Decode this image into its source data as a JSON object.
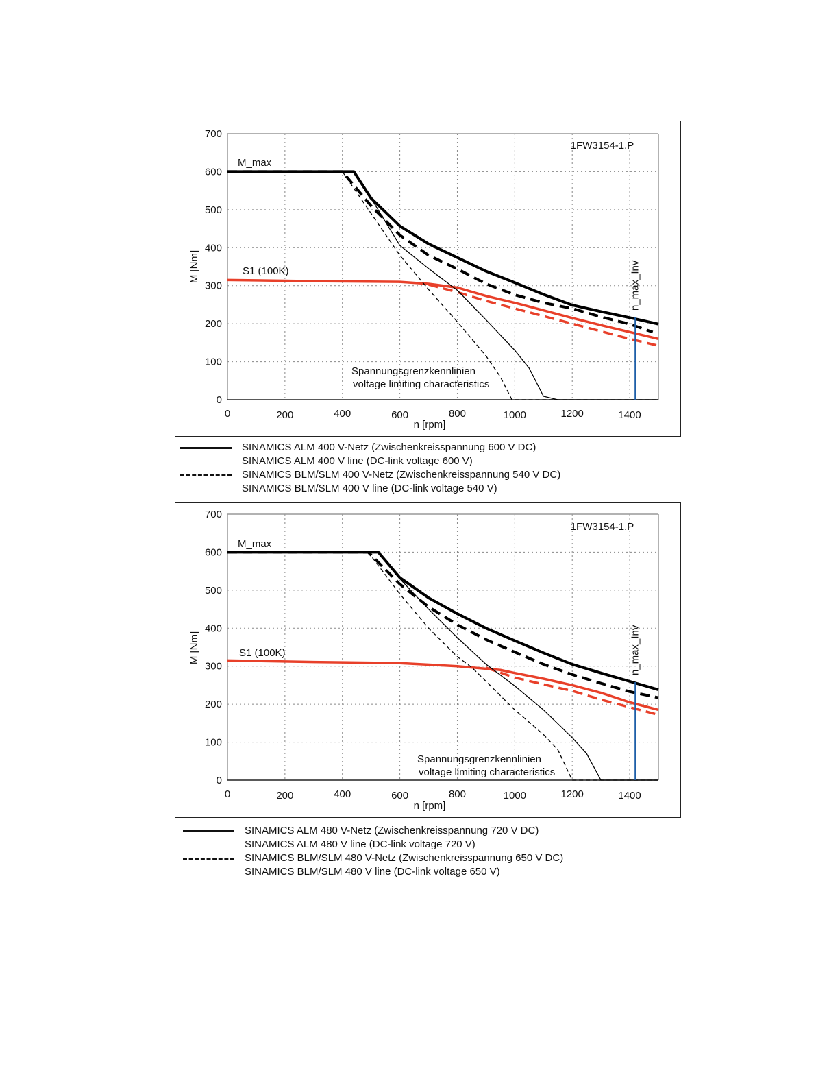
{
  "chart_data": [
    {
      "type": "line",
      "title": "1FW3154-1.P",
      "xlabel": "n [rpm]",
      "ylabel": "M [Nm]",
      "xlim": [
        0,
        1500
      ],
      "ylim": [
        0,
        700
      ],
      "xticks": [
        0,
        200,
        400,
        600,
        800,
        1000,
        1200,
        1400
      ],
      "yticks": [
        0,
        100,
        200,
        300,
        400,
        500,
        600,
        700
      ],
      "grid": true,
      "labels": {
        "mmax": "M_max",
        "s1": "S1 (100K)",
        "annotation_de": "Spannungsgrenzkennlinien",
        "annotation_en": "voltage limiting characteristics",
        "n_max": "n_max_Inv"
      },
      "n_max_inv": 1420,
      "series": [
        {
          "name": "M_max ALM 600 V DC",
          "style": "thick-solid",
          "color": "#000000",
          "x": [
            0,
            440,
            500,
            600,
            700,
            800,
            900,
            1000,
            1100,
            1200,
            1300,
            1400,
            1500
          ],
          "y": [
            600,
            600,
            530,
            457,
            410,
            374,
            338,
            308,
            277,
            249,
            232,
            216,
            199
          ]
        },
        {
          "name": "M_max BLM/SLM 540 V DC",
          "style": "thick-dashed",
          "color": "#000000",
          "x": [
            0,
            400,
            500,
            600,
            700,
            800,
            900,
            1000,
            1100,
            1200,
            1300,
            1400,
            1480
          ],
          "y": [
            600,
            600,
            510,
            433,
            380,
            344,
            305,
            276,
            255,
            240,
            218,
            199,
            178
          ]
        },
        {
          "name": "S1 ALM",
          "style": "solid",
          "color": "#e8402a",
          "x": [
            0,
            300,
            600,
            700,
            800,
            900,
            1000,
            1100,
            1200,
            1300,
            1400,
            1500
          ],
          "y": [
            315,
            312,
            310,
            305,
            295,
            273,
            255,
            235,
            215,
            196,
            178,
            160
          ]
        },
        {
          "name": "S1 BLM/SLM",
          "style": "dashed",
          "color": "#e8402a",
          "x": [
            700,
            800,
            900,
            1000,
            1100,
            1200,
            1300,
            1400,
            1500
          ],
          "y": [
            303,
            283,
            260,
            240,
            220,
            200,
            180,
            160,
            142
          ]
        },
        {
          "name": "Voltage limit ALM",
          "style": "thin-solid",
          "color": "#000000",
          "x": [
            440,
            500,
            600,
            700,
            800,
            900,
            1000,
            1050,
            1100,
            1150,
            1500
          ],
          "y": [
            600,
            530,
            406,
            345,
            288,
            210,
            130,
            83,
            9,
            0,
            0
          ]
        },
        {
          "name": "Voltage limit BLM/SLM",
          "style": "thin-dashed",
          "color": "#000000",
          "x": [
            400,
            500,
            600,
            700,
            800,
            900,
            950,
            990,
            1500
          ],
          "y": [
            600,
            490,
            380,
            290,
            205,
            115,
            60,
            0,
            0
          ]
        }
      ]
    },
    {
      "type": "line",
      "title": "1FW3154-1.P",
      "xlabel": "n [rpm]",
      "ylabel": "M [Nm]",
      "xlim": [
        0,
        1500
      ],
      "ylim": [
        0,
        700
      ],
      "xticks": [
        0,
        200,
        400,
        600,
        800,
        1000,
        1200,
        1400
      ],
      "yticks": [
        0,
        100,
        200,
        300,
        400,
        500,
        600,
        700
      ],
      "grid": true,
      "labels": {
        "mmax": "M_max",
        "s1": "S1 (100K)",
        "annotation_de": "Spannungsgrenzkennlinien",
        "annotation_en": "voltage limiting characteristics",
        "n_max": "n_max_Inv"
      },
      "n_max_inv": 1420,
      "series": [
        {
          "name": "M_max ALM 720 V DC",
          "style": "thick-solid",
          "color": "#000000",
          "x": [
            0,
            525,
            600,
            700,
            800,
            900,
            1000,
            1100,
            1200,
            1300,
            1400,
            1500
          ],
          "y": [
            600,
            600,
            533,
            480,
            438,
            400,
            367,
            335,
            305,
            282,
            260,
            238
          ]
        },
        {
          "name": "M_max BLM/SLM 650 V DC",
          "style": "thick-dashed",
          "color": "#000000",
          "x": [
            0,
            490,
            600,
            700,
            800,
            900,
            1000,
            1100,
            1200,
            1300,
            1400,
            1500
          ],
          "y": [
            600,
            600,
            516,
            456,
            409,
            370,
            337,
            305,
            278,
            255,
            233,
            217
          ]
        },
        {
          "name": "S1 ALM",
          "style": "solid",
          "color": "#e8402a",
          "x": [
            0,
            300,
            600,
            800,
            950,
            1000,
            1100,
            1200,
            1300,
            1400,
            1500
          ],
          "y": [
            315,
            311,
            308,
            300,
            290,
            282,
            267,
            250,
            230,
            205,
            185
          ]
        },
        {
          "name": "S1 BLM/SLM",
          "style": "dashed",
          "color": "#e8402a",
          "x": [
            900,
            1000,
            1100,
            1200,
            1300,
            1400,
            1500
          ],
          "y": [
            296,
            270,
            252,
            235,
            212,
            192,
            172
          ]
        },
        {
          "name": "Voltage limit ALM",
          "style": "thin-solid",
          "color": "#000000",
          "x": [
            525,
            600,
            700,
            800,
            900,
            1000,
            1100,
            1200,
            1250,
            1300,
            1500
          ],
          "y": [
            600,
            530,
            450,
            375,
            305,
            248,
            185,
            112,
            70,
            0,
            0
          ]
        },
        {
          "name": "Voltage limit BLM/SLM",
          "style": "thin-dashed",
          "color": "#000000",
          "x": [
            490,
            600,
            700,
            800,
            850,
            900,
            1000,
            1100,
            1150,
            1200,
            1500
          ],
          "y": [
            600,
            490,
            400,
            325,
            297,
            260,
            185,
            120,
            80,
            0,
            0
          ]
        }
      ]
    }
  ],
  "legends": [
    {
      "items": [
        {
          "style": "solid",
          "line1": "SINAMICS ALM  400 V-Netz (Zwischenkreisspannung 600 V DC)",
          "line2": "SINAMICS ALM  400 V line (DC-link voltage 600 V)"
        },
        {
          "style": "dashed",
          "line1": "SINAMICS BLM/SLM  400 V-Netz (Zwischenkreisspannung 540 V DC)",
          "line2": "SINAMICS BLM/SLM  400 V line (DC-link voltage 540 V)"
        }
      ]
    },
    {
      "items": [
        {
          "style": "solid",
          "line1": "SINAMICS ALM  480 V-Netz (Zwischenkreisspannung 720 V DC)",
          "line2": "SINAMICS ALM  480 V line (DC-link voltage 720 V)"
        },
        {
          "style": "dashed",
          "line1": "SINAMICS BLM/SLM  480 V-Netz (Zwischenkreisspannung 650 V DC)",
          "line2": "SINAMICS BLM/SLM  480 V line (DC-link voltage 650 V)"
        }
      ]
    }
  ]
}
